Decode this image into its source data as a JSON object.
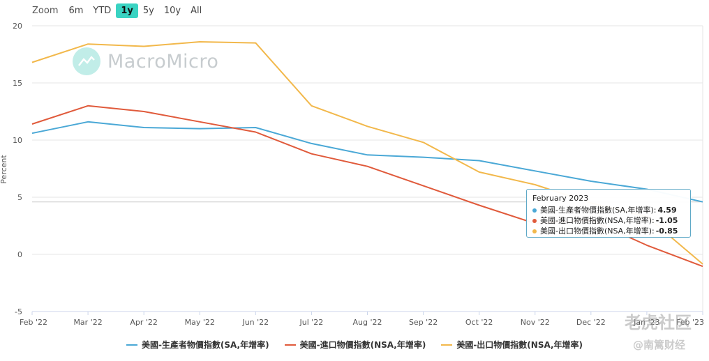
{
  "zoom": {
    "label": "Zoom",
    "options": [
      "6m",
      "YTD",
      "1y",
      "5y",
      "10y",
      "All"
    ],
    "active": "1y"
  },
  "watermark": {
    "brand": "MacroMicro"
  },
  "corner_watermarks": {
    "top": "老虎社区",
    "bottom": "@南篱财经"
  },
  "colors": {
    "ppi": "#4aa8d6",
    "import": "#e05a3b",
    "export": "#f2b84b",
    "accent": "#39d3c2"
  },
  "chart_data": {
    "type": "line",
    "ylabel": "Percent",
    "ylim": [
      -5,
      20
    ],
    "yticks": [
      -5,
      0,
      5,
      10,
      15,
      20
    ],
    "categories": [
      "Feb '22",
      "Mar '22",
      "Apr '22",
      "May '22",
      "Jun '22",
      "Jul '22",
      "Aug '22",
      "Sep '22",
      "Oct '22",
      "Nov '22",
      "Dec '22",
      "Jan '23",
      "Feb '23"
    ],
    "series": [
      {
        "name": "美國-生產者物價指數(SA,年增率)",
        "color": "#4aa8d6",
        "values": [
          10.6,
          11.6,
          11.1,
          11.0,
          11.1,
          9.7,
          8.7,
          8.5,
          8.2,
          7.3,
          6.4,
          5.7,
          4.59
        ]
      },
      {
        "name": "美國-進口物價指數(NSA,年增率)",
        "color": "#e05a3b",
        "values": [
          11.4,
          13.0,
          12.5,
          11.6,
          10.7,
          8.8,
          7.7,
          6.0,
          4.3,
          2.7,
          3.0,
          0.8,
          -1.05
        ]
      },
      {
        "name": "美國-出口物價指數(NSA,年增率)",
        "color": "#f2b84b",
        "values": [
          16.8,
          18.4,
          18.2,
          18.6,
          18.5,
          13.0,
          11.2,
          9.8,
          7.2,
          6.1,
          4.5,
          3.3,
          -0.85
        ]
      }
    ],
    "tooltip": {
      "title": "February 2023",
      "rows": [
        {
          "label": "美國-生產者物價指數(SA,年增率):",
          "value": "4.59",
          "color": "#4aa8d6"
        },
        {
          "label": "美國-進口物價指數(NSA,年增率):",
          "value": "-1.05",
          "color": "#e05a3b"
        },
        {
          "label": "美國-出口物價指數(NSA,年增率):",
          "value": "-0.85",
          "color": "#f2b84b"
        }
      ]
    },
    "legend": [
      {
        "label": "美國-生產者物價指數(SA,年增率)",
        "color": "#4aa8d6"
      },
      {
        "label": "美國-進口物價指數(NSA,年增率)",
        "color": "#e05a3b"
      },
      {
        "label": "美國-出口物價指數(NSA,年增率)",
        "color": "#f2b84b"
      }
    ]
  }
}
